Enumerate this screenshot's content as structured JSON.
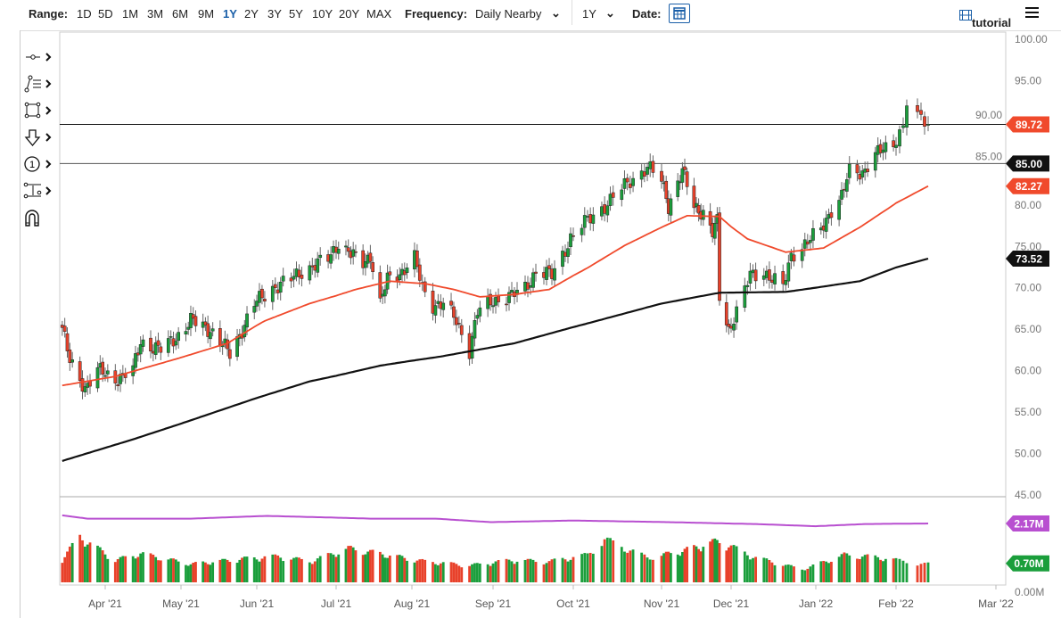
{
  "toolbar": {
    "range_label": "Range:",
    "ranges": [
      "1D",
      "5D",
      "1M",
      "3M",
      "6M",
      "9M",
      "1Y",
      "2Y",
      "3Y",
      "5Y",
      "10Y",
      "20Y",
      "MAX"
    ],
    "active_range": "1Y",
    "frequency_label": "Frequency:",
    "frequency_value": "Daily Nearby",
    "period_value": "1Y",
    "date_label": "Date:",
    "tutorial_label": "tutorial"
  },
  "drawing_tools": [
    "line-tool-icon",
    "fibonacci-tool-icon",
    "rectangle-tool-icon",
    "arrow-down-tool-icon",
    "number-marker-icon",
    "measure-tool-icon",
    "magnet-icon"
  ],
  "colors": {
    "up": "#1a9e3b",
    "down": "#e8412a",
    "ma50": "#f04a2c",
    "ma200": "#111111",
    "vol_avg": "#b84fd0",
    "accent": "#1a5fa8"
  },
  "chart_data": {
    "type": "candlestick",
    "yaxis": {
      "range": [
        45,
        100
      ],
      "ticks": [
        "100.00",
        "95.00",
        "90.00",
        "85.00",
        "80.00",
        "75.00",
        "70.00",
        "65.00",
        "60.00",
        "55.00",
        "50.00",
        "45.00"
      ]
    },
    "xaxis": {
      "ticks": [
        "Apr '21",
        "May '21",
        "Jun '21",
        "Jul '21",
        "Aug '21",
        "Sep '21",
        "Oct '21",
        "Nov '21",
        "Dec '21",
        "Jan '22",
        "Feb '22",
        "Mar '22"
      ]
    },
    "close_keypoints": [
      [
        "2021-03-15",
        65.2
      ],
      [
        "2021-03-18",
        61
      ],
      [
        "2021-03-24",
        58
      ],
      [
        "2021-03-29",
        60
      ],
      [
        "2021-04-05",
        59
      ],
      [
        "2021-04-12",
        60
      ],
      [
        "2021-04-15",
        63.5
      ],
      [
        "2021-04-23",
        62.5
      ],
      [
        "2021-04-29",
        64
      ],
      [
        "2021-05-05",
        66
      ],
      [
        "2021-05-13",
        65
      ],
      [
        "2021-05-21",
        62
      ],
      [
        "2021-05-26",
        65
      ],
      [
        "2021-05-31",
        68
      ],
      [
        "2021-06-07",
        70
      ],
      [
        "2021-06-14",
        71
      ],
      [
        "2021-06-18",
        72
      ],
      [
        "2021-06-28",
        73.5
      ],
      [
        "2021-07-02",
        75.5
      ],
      [
        "2021-07-07",
        74
      ],
      [
        "2021-07-12",
        73
      ],
      [
        "2021-07-15",
        74
      ],
      [
        "2021-07-19",
        68
      ],
      [
        "2021-07-22",
        71
      ],
      [
        "2021-07-28",
        72
      ],
      [
        "2021-08-02",
        73.5
      ],
      [
        "2021-08-05",
        70
      ],
      [
        "2021-08-09",
        68
      ],
      [
        "2021-08-13",
        68
      ],
      [
        "2021-08-18",
        66
      ],
      [
        "2021-08-23",
        62.5
      ],
      [
        "2021-08-26",
        67
      ],
      [
        "2021-09-01",
        68.5
      ],
      [
        "2021-09-08",
        69
      ],
      [
        "2021-09-13",
        70
      ],
      [
        "2021-09-17",
        72
      ],
      [
        "2021-09-23",
        71.5
      ],
      [
        "2021-09-30",
        76
      ],
      [
        "2021-10-07",
        78.5
      ],
      [
        "2021-10-14",
        80.5
      ],
      [
        "2021-10-21",
        83
      ],
      [
        "2021-10-27",
        84.5
      ],
      [
        "2021-11-01",
        83
      ],
      [
        "2021-11-04",
        80
      ],
      [
        "2021-11-10",
        84
      ],
      [
        "2021-11-15",
        80
      ],
      [
        "2021-11-19",
        79
      ],
      [
        "2021-11-23",
        76.5
      ],
      [
        "2021-11-25",
        78
      ],
      [
        "2021-11-26",
        69
      ],
      [
        "2021-11-30",
        65
      ],
      [
        "2021-12-03",
        67
      ],
      [
        "2021-12-08",
        71.5
      ],
      [
        "2021-12-13",
        72
      ],
      [
        "2021-12-16",
        71
      ],
      [
        "2021-12-20",
        70
      ],
      [
        "2021-12-23",
        74
      ],
      [
        "2021-12-29",
        75.5
      ],
      [
        "2022-01-03",
        77
      ],
      [
        "2022-01-07",
        79.5
      ],
      [
        "2022-01-11",
        81
      ],
      [
        "2022-01-14",
        84
      ],
      [
        "2022-01-19",
        84
      ],
      [
        "2022-01-24",
        86
      ],
      [
        "2022-01-31",
        87.5
      ],
      [
        "2022-02-03",
        89.5
      ],
      [
        "2022-02-04",
        92.5
      ],
      [
        "2022-02-08",
        90
      ],
      [
        "2022-02-10",
        89.72
      ]
    ],
    "ma50_keypoints": [
      [
        "2021-03-15",
        58.2
      ],
      [
        "2021-04-05",
        59.3
      ],
      [
        "2021-04-29",
        61.4
      ],
      [
        "2021-05-20",
        63.3
      ],
      [
        "2021-06-04",
        66
      ],
      [
        "2021-06-21",
        68.1
      ],
      [
        "2021-07-09",
        69.8
      ],
      [
        "2021-07-23",
        70.8
      ],
      [
        "2021-08-06",
        70.5
      ],
      [
        "2021-08-17",
        69.8
      ],
      [
        "2021-08-27",
        68.9
      ],
      [
        "2021-09-09",
        69.2
      ],
      [
        "2021-09-22",
        69.8
      ],
      [
        "2021-10-06",
        72.4
      ],
      [
        "2021-10-19",
        75.1
      ],
      [
        "2021-11-01",
        77.3
      ],
      [
        "2021-11-12",
        78.7
      ],
      [
        "2021-11-26",
        78.6
      ],
      [
        "2021-12-07",
        75.9
      ],
      [
        "2021-12-21",
        74.3
      ],
      [
        "2022-01-04",
        74.8
      ],
      [
        "2022-01-18",
        77.3
      ],
      [
        "2022-01-31",
        80
      ],
      [
        "2022-02-10",
        82.27
      ]
    ],
    "ma200_keypoints": [
      [
        "2021-03-15",
        49.1
      ],
      [
        "2021-04-12",
        51.7
      ],
      [
        "2021-05-17",
        55.2
      ],
      [
        "2021-06-21",
        58.7
      ],
      [
        "2021-07-19",
        60.6
      ],
      [
        "2021-08-12",
        61.7
      ],
      [
        "2021-09-09",
        63.3
      ],
      [
        "2021-10-06",
        65.7
      ],
      [
        "2021-11-01",
        68.1
      ],
      [
        "2021-11-26",
        69.4
      ],
      [
        "2021-12-21",
        69.5
      ],
      [
        "2022-01-18",
        70.8
      ],
      [
        "2022-02-10",
        73.52
      ]
    ],
    "volume_unit": "M",
    "volume_axis": {
      "range": [
        0,
        2.5
      ],
      "ticks": [
        "0.00M"
      ]
    },
    "volume_keypoints": [
      [
        "2021-03-15",
        0.9
      ],
      [
        "2021-03-22",
        1.75
      ],
      [
        "2021-04-05",
        0.85
      ],
      [
        "2021-04-15",
        1.1
      ],
      [
        "2021-05-05",
        0.7
      ],
      [
        "2021-05-26",
        0.9
      ],
      [
        "2021-06-10",
        1.0
      ],
      [
        "2021-06-21",
        0.8
      ],
      [
        "2021-07-06",
        1.3
      ],
      [
        "2021-07-22",
        1.05
      ],
      [
        "2021-08-06",
        0.8
      ],
      [
        "2021-08-23",
        0.65
      ],
      [
        "2021-09-08",
        0.85
      ],
      [
        "2021-09-22",
        0.8
      ],
      [
        "2021-10-06",
        1.05
      ],
      [
        "2021-10-12",
        1.65
      ],
      [
        "2021-10-27",
        0.95
      ],
      [
        "2021-11-10",
        1.2
      ],
      [
        "2021-11-26",
        1.6
      ],
      [
        "2021-12-10",
        0.95
      ],
      [
        "2021-12-27",
        0.5
      ],
      [
        "2022-01-12",
        1.05
      ],
      [
        "2022-01-26",
        0.95
      ],
      [
        "2022-02-10",
        0.7
      ]
    ],
    "volume_avg_keypoints": [
      [
        "2021-03-15",
        2.47
      ],
      [
        "2021-03-25",
        2.35
      ],
      [
        "2021-05-05",
        2.35
      ],
      [
        "2021-06-05",
        2.45
      ],
      [
        "2021-07-15",
        2.35
      ],
      [
        "2021-08-10",
        2.35
      ],
      [
        "2021-08-31",
        2.22
      ],
      [
        "2021-10-01",
        2.28
      ],
      [
        "2021-11-15",
        2.2
      ],
      [
        "2021-12-10",
        2.15
      ],
      [
        "2022-01-01",
        2.07
      ],
      [
        "2022-01-20",
        2.15
      ],
      [
        "2022-02-10",
        2.17
      ]
    ],
    "horizontal_lines": [
      89.72,
      85.0
    ],
    "price_tags": [
      {
        "value": "89.72",
        "color": "#f04a2c",
        "series": "last"
      },
      {
        "value": "85.00",
        "color": "#111111",
        "series": "level"
      },
      {
        "value": "82.27",
        "color": "#f04a2c",
        "series": "ma50"
      },
      {
        "value": "73.52",
        "color": "#111111",
        "series": "ma200"
      }
    ],
    "volume_tags": [
      {
        "value": "2.17M",
        "color": "#b84fd0"
      },
      {
        "value": "0.70M",
        "color": "#1a9e3b"
      }
    ]
  }
}
